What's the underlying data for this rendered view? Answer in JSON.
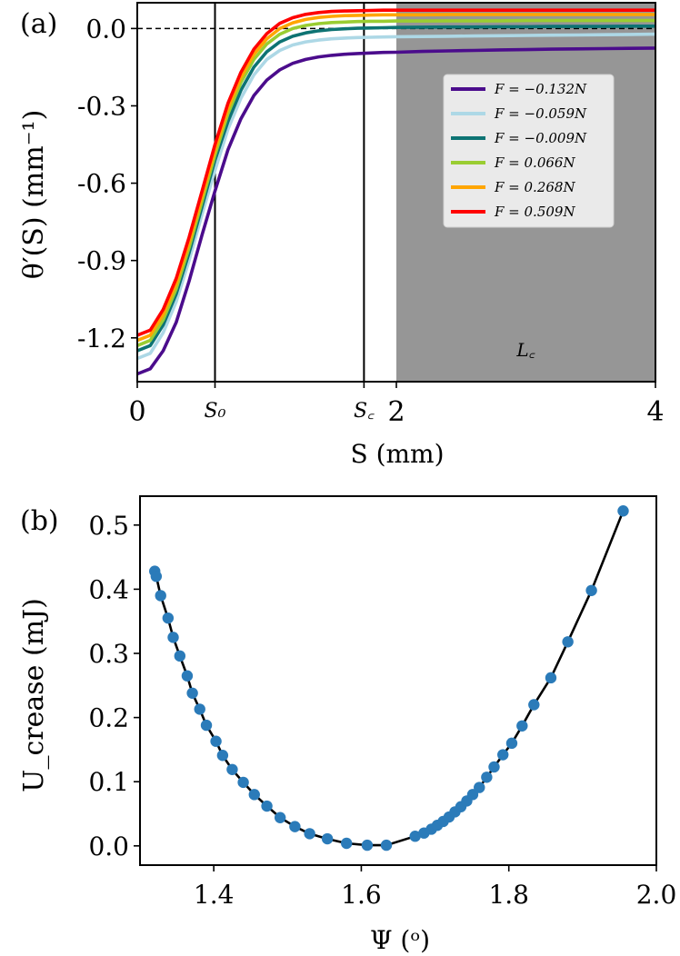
{
  "chart_data": [
    {
      "panel_label": "(a)",
      "type": "line",
      "xlabel": "S (mm)",
      "ylabel": "θ′(S) (mm⁻¹)",
      "xlim": [
        0,
        4
      ],
      "ylim": [
        -1.37,
        0.1
      ],
      "xticks": [
        {
          "value": 0,
          "label": "0"
        },
        {
          "value": 0.6,
          "label": "S₀"
        },
        {
          "value": 1.75,
          "label": "S꜀"
        },
        {
          "value": 2,
          "label": "2"
        },
        {
          "value": 4,
          "label": "4"
        }
      ],
      "yticks": [
        {
          "value": 0.0,
          "label": "0.0"
        },
        {
          "value": -0.3,
          "label": "-0.3"
        },
        {
          "value": -0.6,
          "label": "-0.6"
        },
        {
          "value": -0.9,
          "label": "-0.9"
        },
        {
          "value": -1.2,
          "label": "-1.2"
        }
      ],
      "reference_line_y": 0.0,
      "vertical_lines_x": [
        0.6,
        1.75
      ],
      "shaded_region": {
        "x": [
          2,
          4
        ],
        "label": "L꜀",
        "color": "#969696"
      },
      "legend_position": "upper right",
      "x": [
        0,
        0.1,
        0.2,
        0.3,
        0.4,
        0.5,
        0.6,
        0.7,
        0.8,
        0.9,
        1.0,
        1.1,
        1.2,
        1.3,
        1.4,
        1.5,
        1.6,
        1.7,
        1.8,
        1.9,
        2.0,
        2.2,
        2.4,
        2.6,
        2.8,
        3.0,
        3.2,
        3.4,
        3.6,
        3.8,
        4.0
      ],
      "series": [
        {
          "name": "F = −0.132N",
          "color": "#4b0c8c",
          "values": [
            -1.34,
            -1.32,
            -1.25,
            -1.14,
            -0.98,
            -0.8,
            -0.63,
            -0.47,
            -0.35,
            -0.26,
            -0.2,
            -0.16,
            -0.135,
            -0.12,
            -0.11,
            -0.104,
            -0.1,
            -0.097,
            -0.095,
            -0.093,
            -0.092,
            -0.089,
            -0.087,
            -0.085,
            -0.083,
            -0.082,
            -0.08,
            -0.079,
            -0.078,
            -0.077,
            -0.076
          ]
        },
        {
          "name": "F = −0.059N",
          "color": "#add8e6",
          "values": [
            -1.28,
            -1.26,
            -1.18,
            -1.06,
            -0.9,
            -0.72,
            -0.55,
            -0.39,
            -0.27,
            -0.18,
            -0.12,
            -0.085,
            -0.064,
            -0.052,
            -0.045,
            -0.04,
            -0.037,
            -0.035,
            -0.034,
            -0.033,
            -0.032,
            -0.031,
            -0.03,
            -0.029,
            -0.028,
            -0.027,
            -0.026,
            -0.025,
            -0.024,
            -0.023,
            -0.022
          ]
        },
        {
          "name": "F = −0.009N",
          "color": "#0d7373",
          "values": [
            -1.25,
            -1.23,
            -1.15,
            -1.03,
            -0.87,
            -0.69,
            -0.51,
            -0.36,
            -0.24,
            -0.15,
            -0.09,
            -0.052,
            -0.03,
            -0.017,
            -0.009,
            -0.004,
            -0.001,
            0.001,
            0.002,
            0.003,
            0.004,
            0.005,
            0.006,
            0.006,
            0.007,
            0.007,
            0.008,
            0.008,
            0.008,
            0.009,
            0.009
          ]
        },
        {
          "name": "F = 0.066N",
          "color": "#9acd32",
          "values": [
            -1.23,
            -1.21,
            -1.13,
            -1.01,
            -0.85,
            -0.67,
            -0.49,
            -0.33,
            -0.21,
            -0.12,
            -0.06,
            -0.022,
            0.0,
            0.012,
            0.019,
            0.023,
            0.025,
            0.027,
            0.028,
            0.028,
            0.029,
            0.029,
            0.03,
            0.03,
            0.03,
            0.031,
            0.031,
            0.031,
            0.031,
            0.031,
            0.031
          ]
        },
        {
          "name": "F = 0.268N",
          "color": "#ffa500",
          "values": [
            -1.21,
            -1.19,
            -1.11,
            -0.99,
            -0.83,
            -0.65,
            -0.47,
            -0.31,
            -0.19,
            -0.1,
            -0.04,
            0.0,
            0.022,
            0.035,
            0.043,
            0.047,
            0.05,
            0.051,
            0.052,
            0.053,
            0.053,
            0.053,
            0.054,
            0.054,
            0.054,
            0.054,
            0.054,
            0.054,
            0.054,
            0.054,
            0.054
          ]
        },
        {
          "name": "F = 0.509N",
          "color": "#ff0000",
          "values": [
            -1.19,
            -1.17,
            -1.09,
            -0.97,
            -0.81,
            -0.63,
            -0.45,
            -0.29,
            -0.17,
            -0.08,
            -0.02,
            0.02,
            0.042,
            0.055,
            0.062,
            0.066,
            0.068,
            0.069,
            0.07,
            0.071,
            0.071,
            0.071,
            0.071,
            0.071,
            0.071,
            0.071,
            0.071,
            0.071,
            0.071,
            0.071,
            0.071
          ]
        }
      ]
    },
    {
      "panel_label": "(b)",
      "type": "scatter",
      "xlabel": "Ψ (ᵒ)",
      "ylabel": "U_crease (mJ)",
      "xlim": [
        1.3,
        2.0
      ],
      "ylim": [
        -0.03,
        0.545
      ],
      "xticks": [
        {
          "value": 1.4,
          "label": "1.4"
        },
        {
          "value": 1.6,
          "label": "1.6"
        },
        {
          "value": 1.8,
          "label": "1.8"
        },
        {
          "value": 2.0,
          "label": "2.0"
        }
      ],
      "yticks": [
        {
          "value": 0.0,
          "label": "0.0"
        },
        {
          "value": 0.1,
          "label": "0.1"
        },
        {
          "value": 0.2,
          "label": "0.2"
        },
        {
          "value": 0.3,
          "label": "0.3"
        },
        {
          "value": 0.4,
          "label": "0.4"
        },
        {
          "value": 0.5,
          "label": "0.5"
        }
      ],
      "point_color": "#2b7bb9",
      "fit_color": "#000000",
      "points": [
        {
          "x": 1.32,
          "y": 0.428
        },
        {
          "x": 1.322,
          "y": 0.42
        },
        {
          "x": 1.328,
          "y": 0.39
        },
        {
          "x": 1.338,
          "y": 0.355
        },
        {
          "x": 1.345,
          "y": 0.325
        },
        {
          "x": 1.354,
          "y": 0.296
        },
        {
          "x": 1.364,
          "y": 0.265
        },
        {
          "x": 1.371,
          "y": 0.238
        },
        {
          "x": 1.381,
          "y": 0.213
        },
        {
          "x": 1.39,
          "y": 0.188
        },
        {
          "x": 1.403,
          "y": 0.163
        },
        {
          "x": 1.412,
          "y": 0.141
        },
        {
          "x": 1.425,
          "y": 0.119
        },
        {
          "x": 1.44,
          "y": 0.099
        },
        {
          "x": 1.455,
          "y": 0.08
        },
        {
          "x": 1.472,
          "y": 0.062
        },
        {
          "x": 1.49,
          "y": 0.044
        },
        {
          "x": 1.51,
          "y": 0.03
        },
        {
          "x": 1.53,
          "y": 0.019
        },
        {
          "x": 1.554,
          "y": 0.011
        },
        {
          "x": 1.58,
          "y": 0.004
        },
        {
          "x": 1.608,
          "y": 0.001
        },
        {
          "x": 1.634,
          "y": 0.001
        },
        {
          "x": 1.673,
          "y": 0.015
        },
        {
          "x": 1.685,
          "y": 0.02
        },
        {
          "x": 1.695,
          "y": 0.026
        },
        {
          "x": 1.703,
          "y": 0.032
        },
        {
          "x": 1.711,
          "y": 0.038
        },
        {
          "x": 1.719,
          "y": 0.045
        },
        {
          "x": 1.727,
          "y": 0.053
        },
        {
          "x": 1.735,
          "y": 0.061
        },
        {
          "x": 1.743,
          "y": 0.07
        },
        {
          "x": 1.751,
          "y": 0.08
        },
        {
          "x": 1.76,
          "y": 0.091
        },
        {
          "x": 1.77,
          "y": 0.107
        },
        {
          "x": 1.78,
          "y": 0.123
        },
        {
          "x": 1.792,
          "y": 0.142
        },
        {
          "x": 1.804,
          "y": 0.16
        },
        {
          "x": 1.818,
          "y": 0.187
        },
        {
          "x": 1.834,
          "y": 0.22
        },
        {
          "x": 1.857,
          "y": 0.262
        },
        {
          "x": 1.88,
          "y": 0.318
        },
        {
          "x": 1.912,
          "y": 0.398
        },
        {
          "x": 1.955,
          "y": 0.522
        }
      ]
    }
  ]
}
